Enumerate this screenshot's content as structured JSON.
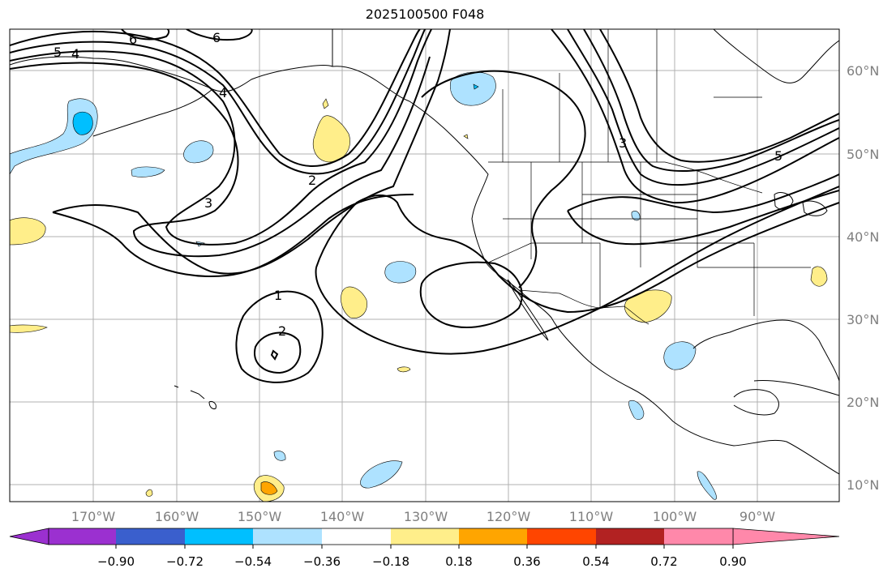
{
  "title": "2025100500 F048",
  "lon_labels": [
    "170°W",
    "160°W",
    "150°W",
    "140°W",
    "130°W",
    "120°W",
    "110°W",
    "100°W",
    "90°W"
  ],
  "lat_labels": [
    "60°N",
    "50°N",
    "40°N",
    "30°N",
    "20°N",
    "10°N"
  ],
  "contour_labels": [
    "6",
    "6",
    "5",
    "4",
    "4",
    "3",
    "3",
    "2",
    "2",
    "1",
    "5"
  ],
  "colorbar": {
    "ticks": [
      "−0.90",
      "−0.72",
      "−0.54",
      "−0.36",
      "−0.18",
      "0.18",
      "0.36",
      "0.54",
      "0.72",
      "0.90"
    ],
    "colors": [
      "#9b30d0",
      "#00008b",
      "#3a5fcd",
      "#00bfff",
      "#aee2ff",
      "#ffffff",
      "#ffee8a",
      "#ffa500",
      "#ff4500",
      "#b22222",
      "#ff88aa"
    ]
  },
  "colors": {
    "light_blue": "#aee2ff",
    "deep_sky_blue": "#00bfff",
    "light_yellow": "#ffee8a",
    "orange": "#ffa500",
    "gridline": "#b0b0b0",
    "contour": "#000000",
    "axis_label": "#7f7f7f"
  }
}
